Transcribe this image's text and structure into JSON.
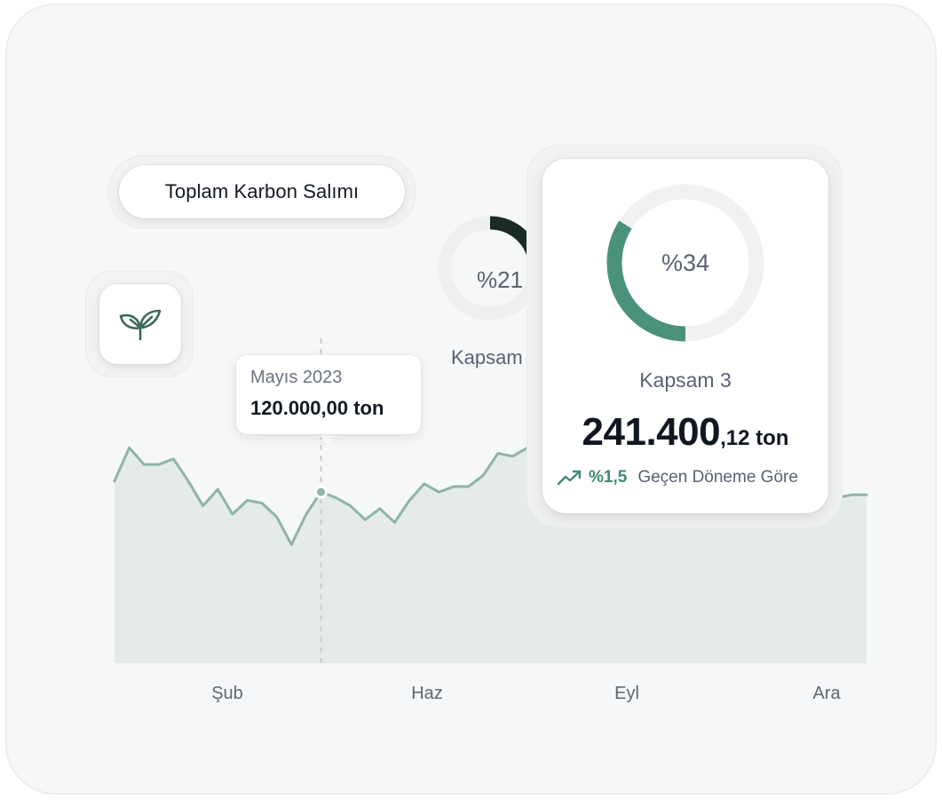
{
  "title_pill": {
    "label": "Toplam Karbon Salımı"
  },
  "icon": {
    "name": "leaf-icon",
    "color": "#3d6b5a"
  },
  "tooltip": {
    "date": "Mayıs 2023",
    "value": "120.000,00 ton"
  },
  "scope_cards": [
    {
      "name": "Kapsam",
      "percent_label": "%21",
      "percent": 21,
      "ring_color": "#1a2b25"
    },
    {
      "name": "Kapsam 3",
      "percent_label": "%34",
      "percent": 34,
      "ring_color": "#4a9379",
      "value_main": "241.400",
      "value_decimal": ",12 ton",
      "trend_value": "%1,5",
      "trend_text": "Geçen Döneme Göre",
      "trend_icon": "trend-up-icon",
      "trend_color": "#3f8b6d"
    }
  ],
  "chart_data": {
    "type": "area",
    "x_tick_labels": [
      "Şub",
      "Haz",
      "Eyl",
      "Ara"
    ],
    "values": [
      66,
      78,
      72,
      72,
      74,
      66,
      57,
      63,
      54,
      59,
      58,
      53,
      43,
      54,
      62,
      60,
      57,
      52,
      56,
      51,
      59,
      65,
      62,
      64,
      64,
      68,
      76,
      75,
      78,
      89,
      92,
      93,
      95,
      96,
      96,
      97,
      94,
      90,
      85,
      82,
      80,
      78,
      76,
      74,
      72,
      70,
      68,
      66,
      63,
      60,
      61,
      61
    ],
    "highlight_index": 14,
    "ylim": [
      0,
      100
    ],
    "line_color": "#8fb5a5",
    "fill_color": "#e4ebe8",
    "grid": false
  }
}
